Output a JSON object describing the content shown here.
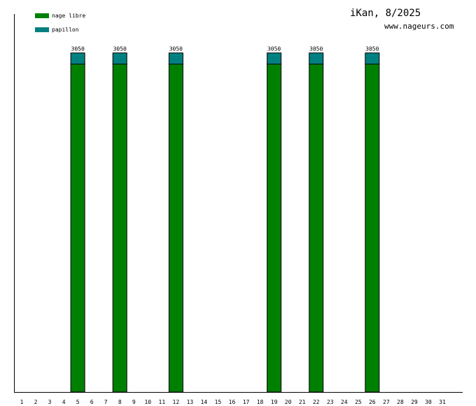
{
  "chart_data": {
    "type": "bar",
    "stacked": true,
    "title": "iKan, 8/2025",
    "subtitle": "www.nageurs.com",
    "categories": [
      "1",
      "2",
      "3",
      "4",
      "5",
      "6",
      "7",
      "8",
      "9",
      "10",
      "11",
      "12",
      "13",
      "14",
      "15",
      "16",
      "17",
      "18",
      "19",
      "20",
      "21",
      "22",
      "23",
      "24",
      "25",
      "26",
      "27",
      "28",
      "29",
      "30",
      "31"
    ],
    "series": [
      {
        "name": "nage libre",
        "color": "#008000",
        "values": [
          0,
          0,
          0,
          0,
          2950,
          0,
          0,
          2950,
          0,
          0,
          0,
          2950,
          0,
          0,
          0,
          0,
          0,
          0,
          2950,
          0,
          0,
          2950,
          0,
          0,
          0,
          2950,
          0,
          0,
          0,
          0,
          0
        ]
      },
      {
        "name": "papillon",
        "color": "#008080",
        "values": [
          0,
          0,
          0,
          0,
          100,
          0,
          0,
          100,
          0,
          0,
          0,
          100,
          0,
          0,
          0,
          0,
          0,
          0,
          100,
          0,
          0,
          100,
          0,
          0,
          0,
          100,
          0,
          0,
          0,
          0,
          0
        ]
      }
    ],
    "totals": [
      null,
      null,
      null,
      null,
      "3050",
      null,
      null,
      "3050",
      null,
      null,
      null,
      "3050",
      null,
      null,
      null,
      null,
      null,
      null,
      "3050",
      null,
      null,
      "3050",
      null,
      null,
      null,
      "3050",
      null,
      null,
      null,
      null,
      null
    ],
    "ylim": [
      0,
      3400
    ],
    "legend_position": "top-left",
    "grid": false
  }
}
